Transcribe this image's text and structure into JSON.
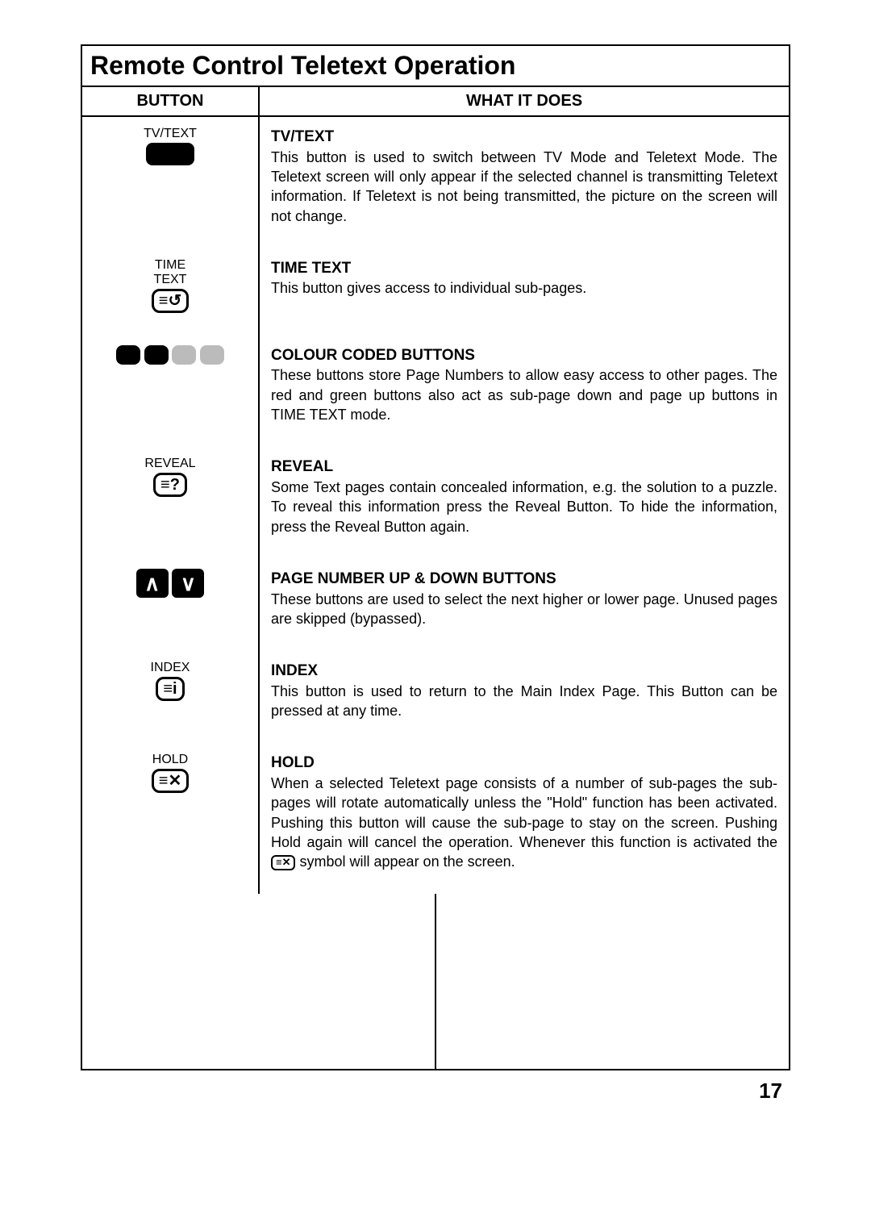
{
  "title": "Remote Control Teletext Operation",
  "headers": {
    "left": "BUTTON",
    "right": "WHAT IT DOES"
  },
  "rows": [
    {
      "button_label": "TV/TEXT",
      "icon_type": "solid-black",
      "desc_title": "TV/TEXT",
      "desc_body": "This button is used to switch between TV Mode and Teletext Mode. The Teletext screen will only appear if the selected channel is transmitting Teletext information. If Teletext is not being transmitted, the picture on the screen will not change."
    },
    {
      "button_label": "TIME\nTEXT",
      "icon_type": "outline",
      "icon_text": "≡↺",
      "desc_title": "TIME TEXT",
      "desc_body": "This button gives access to individual sub-pages."
    },
    {
      "button_label": "",
      "icon_type": "colour-row",
      "desc_title": "COLOUR CODED BUTTONS",
      "desc_body": "These buttons store Page Numbers to allow easy access to other pages. The red and green buttons also act as sub-page down and page up buttons in TIME TEXT mode."
    },
    {
      "button_label": "REVEAL",
      "icon_type": "outline",
      "icon_text": "≡?",
      "desc_title": "REVEAL",
      "desc_body": "Some Text pages contain concealed information, e.g. the solution to a puzzle. To reveal this information press the Reveal Button. To hide the information, press the Reveal Button again."
    },
    {
      "button_label": "",
      "icon_type": "arrows",
      "desc_title": "PAGE NUMBER UP & DOWN BUTTONS",
      "desc_body": "These buttons are used to select the next higher or lower page. Unused pages are skipped (bypassed)."
    },
    {
      "button_label": "INDEX",
      "icon_type": "outline",
      "icon_text": "≡i",
      "desc_title": "INDEX",
      "desc_body": "This button is used to return to the Main Index Page. This Button can be pressed at any time."
    },
    {
      "button_label": "HOLD",
      "icon_type": "outline",
      "icon_text": "≡✕",
      "desc_title": "HOLD",
      "desc_body_pre": "When a selected Teletext page consists of a number of sub-pages the sub-pages will rotate automatically unless the \"Hold\" function has been activated. Pushing this button will cause the sub-page to stay on the screen. Pushing Hold again will cancel the operation. Whenever this function is activated the ",
      "desc_body_icon": "≡✕",
      "desc_body_post": " symbol will appear on the screen."
    }
  ],
  "page_number": "17"
}
